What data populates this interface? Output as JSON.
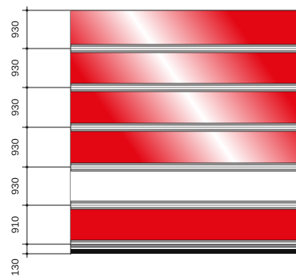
{
  "dimensions": [
    {
      "label": "930",
      "value": 930
    },
    {
      "label": "930",
      "value": 930
    },
    {
      "label": "930",
      "value": 930
    },
    {
      "label": "930",
      "value": 930
    },
    {
      "label": "930",
      "value": 930
    },
    {
      "label": "910",
      "value": 910
    },
    {
      "label": "130",
      "value": 130
    }
  ],
  "panels": [
    {
      "fill": "gradient"
    },
    {
      "fill": "gradient"
    },
    {
      "fill": "gradient"
    },
    {
      "fill": "gradient"
    },
    {
      "fill": "white"
    },
    {
      "fill": "red"
    },
    {
      "fill": "dark"
    }
  ],
  "colors": {
    "red": "#e30613",
    "white": "#ffffff",
    "line": "#1a1a1a",
    "base": "#111111"
  }
}
